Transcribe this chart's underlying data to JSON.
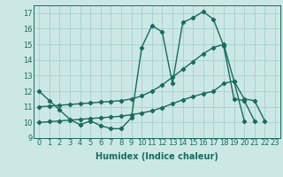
{
  "x": [
    0,
    1,
    2,
    3,
    4,
    5,
    6,
    7,
    8,
    9,
    10,
    11,
    12,
    13,
    14,
    15,
    16,
    17,
    18,
    19,
    20,
    21,
    22,
    23
  ],
  "line1": [
    12.0,
    11.4,
    10.8,
    10.2,
    9.85,
    10.1,
    9.8,
    9.6,
    9.6,
    10.3,
    14.8,
    16.2,
    15.8,
    12.5,
    16.4,
    16.7,
    17.1,
    16.6,
    14.9,
    11.5,
    11.4,
    10.1,
    null,
    null
  ],
  "line2": [
    11.0,
    11.05,
    11.1,
    11.15,
    11.2,
    11.25,
    11.3,
    11.35,
    11.4,
    11.5,
    11.7,
    12.0,
    12.4,
    12.9,
    13.4,
    13.9,
    14.4,
    14.8,
    15.0,
    12.65,
    11.5,
    11.4,
    10.1,
    null
  ],
  "line3": [
    10.0,
    10.05,
    10.1,
    10.15,
    10.2,
    10.25,
    10.3,
    10.35,
    10.4,
    10.5,
    10.6,
    10.75,
    10.95,
    11.2,
    11.45,
    11.65,
    11.85,
    12.0,
    12.5,
    12.65,
    10.1,
    null,
    null,
    null
  ],
  "color": "#1a6b5a",
  "bg_color": "#cce8e5",
  "grid_color": "#a8d0cc",
  "xlabel": "Humidex (Indice chaleur)",
  "ylim": [
    9,
    17.5
  ],
  "xlim": [
    -0.5,
    23.5
  ],
  "yticks": [
    9,
    10,
    11,
    12,
    13,
    14,
    15,
    16,
    17
  ],
  "xticks": [
    0,
    1,
    2,
    3,
    4,
    5,
    6,
    7,
    8,
    9,
    10,
    11,
    12,
    13,
    14,
    15,
    16,
    17,
    18,
    19,
    20,
    21,
    22,
    23
  ],
  "xtick_labels": [
    "0",
    "1",
    "2",
    "3",
    "4",
    "5",
    "6",
    "7",
    "8",
    "9",
    "10",
    "11",
    "12",
    "13",
    "14",
    "15",
    "16",
    "17",
    "18",
    "19",
    "20",
    "21",
    "22",
    "23"
  ],
  "marker": "D",
  "markersize": 2.2,
  "linewidth": 1.0,
  "fontsize_label": 7,
  "fontsize_tick": 6
}
